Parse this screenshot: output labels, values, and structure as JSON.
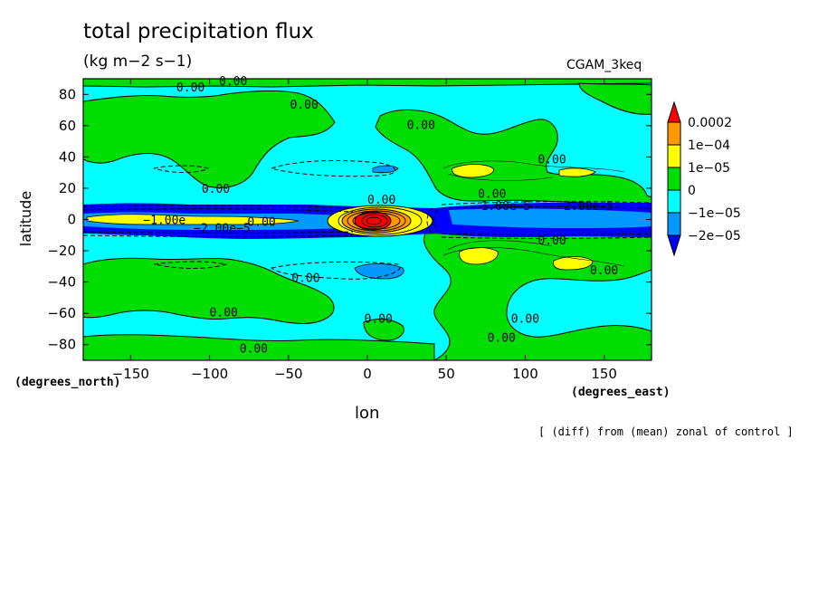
{
  "title": "total precipitation flux",
  "units": "(kg m−2 s−1)",
  "case_name": "CGAM_3keq",
  "footnote": "[ (diff) from (mean) zonal of control ]",
  "chart_data": {
    "type": "heatmap",
    "subtype": "filled-contour-map",
    "xlabel": "lon",
    "ylabel": "latitude",
    "x_units": "(degrees_east)",
    "y_units": "(degrees_north)",
    "xlim": [
      -180,
      180
    ],
    "ylim": [
      -90,
      90
    ],
    "x_ticks": [
      -150,
      -100,
      -50,
      0,
      50,
      100,
      150
    ],
    "y_ticks": [
      -80,
      -60,
      -40,
      -20,
      0,
      20,
      40,
      60,
      80
    ],
    "colorbar": {
      "levels": [
        "0.0002",
        "1e−04",
        "1e−05",
        "0",
        "−1e−05",
        "−2e−05"
      ],
      "colors": [
        "#ff0000",
        "#ff9900",
        "#ffff00",
        "#00dd00",
        "#00ffff",
        "#0099ff",
        "#0000ff"
      ]
    },
    "contour_labels": [
      "0.00",
      "1.00e−5",
      "−2.00e−5",
      "−1.00e",
      "−2.00e−5"
    ],
    "colors": {
      "strong_positive": "#ff0000",
      "positive_high": "#ff9900",
      "positive": "#ffff00",
      "small_positive": "#00dd00",
      "small_negative": "#00ffff",
      "negative": "#0099ff",
      "strong_negative": "#0000ff"
    }
  }
}
